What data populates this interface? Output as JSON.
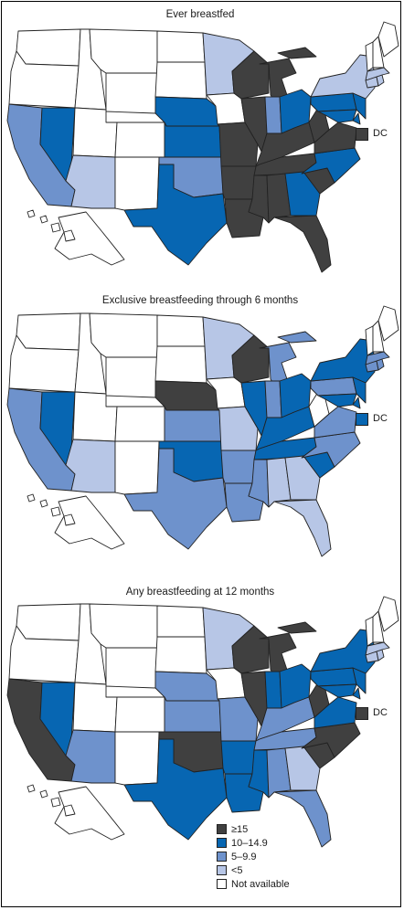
{
  "colors": {
    "ge15": "#404040",
    "c10_14": "#0766b2",
    "c5_9": "#6e92cc",
    "lt5": "#b7c6e6",
    "na": "#ffffff"
  },
  "panels": [
    {
      "title": "Ever breastfed",
      "dc_label": "DC",
      "dc_category": "ge15",
      "states": {
        "WA": "na",
        "OR": "na",
        "CA": "c5_9",
        "NV": "c10_14",
        "ID": "na",
        "MT": "na",
        "WY": "na",
        "UT": "na",
        "AZ": "lt5",
        "CO": "na",
        "NM": "na",
        "ND": "na",
        "SD": "na",
        "NE": "c10_14",
        "KS": "c10_14",
        "OK": "c5_9",
        "TX": "c10_14",
        "MN": "lt5",
        "IA": "na",
        "MO": "ge15",
        "AR": "ge15",
        "LA": "ge15",
        "WI": "ge15",
        "IL": "ge15",
        "MI": "ge15",
        "IN": "c5_9",
        "OH": "c10_14",
        "KY": "ge15",
        "TN": "ge15",
        "MS": "ge15",
        "AL": "ge15",
        "GA": "c10_14",
        "FL": "ge15",
        "SC": "ge15",
        "NC": "c10_14",
        "VA": "ge15",
        "WV": "ge15",
        "PA": "c10_14",
        "NY": "lt5",
        "NJ": "c10_14",
        "DE": "c10_14",
        "MD": "c10_14",
        "CT": "lt5",
        "RI": "lt5",
        "MA": "lt5",
        "VT": "na",
        "NH": "na",
        "ME": "na",
        "AK": "na",
        "HI": "na"
      }
    },
    {
      "title": "Exclusive breastfeeding through 6 months",
      "dc_label": "DC",
      "dc_category": "c10_14",
      "states": {
        "WA": "na",
        "OR": "na",
        "CA": "c5_9",
        "NV": "c10_14",
        "ID": "na",
        "MT": "na",
        "WY": "na",
        "UT": "na",
        "AZ": "lt5",
        "CO": "na",
        "NM": "na",
        "ND": "na",
        "SD": "na",
        "NE": "ge15",
        "KS": "c5_9",
        "OK": "c10_14",
        "TX": "c5_9",
        "MN": "lt5",
        "IA": "na",
        "MO": "lt5",
        "AR": "c5_9",
        "LA": "c5_9",
        "WI": "ge15",
        "IL": "c10_14",
        "MI": "c5_9",
        "IN": "c5_9",
        "OH": "c10_14",
        "KY": "c10_14",
        "TN": "c10_14",
        "MS": "c5_9",
        "AL": "lt5",
        "GA": "lt5",
        "FL": "lt5",
        "SC": "c10_14",
        "NC": "c5_9",
        "VA": "c5_9",
        "WV": "na",
        "PA": "c5_9",
        "NY": "c10_14",
        "NJ": "c10_14",
        "DE": "c10_14",
        "MD": "c10_14",
        "CT": "c5_9",
        "RI": "c5_9",
        "MA": "c5_9",
        "VT": "na",
        "NH": "na",
        "ME": "na",
        "AK": "na",
        "HI": "na"
      }
    },
    {
      "title": "Any breastfeeding at 12 months",
      "dc_label": "DC",
      "dc_category": "ge15",
      "states": {
        "WA": "na",
        "OR": "na",
        "CA": "ge15",
        "NV": "c10_14",
        "ID": "na",
        "MT": "na",
        "WY": "na",
        "UT": "na",
        "AZ": "c5_9",
        "CO": "na",
        "NM": "na",
        "ND": "na",
        "SD": "na",
        "NE": "c5_9",
        "KS": "c5_9",
        "OK": "ge15",
        "TX": "c10_14",
        "MN": "lt5",
        "IA": "na",
        "MO": "c5_9",
        "AR": "c10_14",
        "LA": "c10_14",
        "WI": "ge15",
        "IL": "ge15",
        "MI": "ge15",
        "IN": "c10_14",
        "OH": "c10_14",
        "KY": "c5_9",
        "TN": "c5_9",
        "MS": "c10_14",
        "AL": "c5_9",
        "GA": "lt5",
        "FL": "c5_9",
        "SC": "ge15",
        "NC": "ge15",
        "VA": "c10_14",
        "WV": "ge15",
        "PA": "c10_14",
        "NY": "c10_14",
        "NJ": "c10_14",
        "DE": "c10_14",
        "MD": "c10_14",
        "CT": "lt5",
        "RI": "lt5",
        "MA": "lt5",
        "VT": "na",
        "NH": "na",
        "ME": "na",
        "AK": "na",
        "HI": "na"
      }
    }
  ],
  "legend": [
    {
      "label": "≥15",
      "category": "ge15"
    },
    {
      "label": "10–14.9",
      "category": "c10_14"
    },
    {
      "label": "5–9.9",
      "category": "c5_9"
    },
    {
      "label": "<5",
      "category": "lt5"
    },
    {
      "label": "Not available",
      "category": "na"
    }
  ]
}
